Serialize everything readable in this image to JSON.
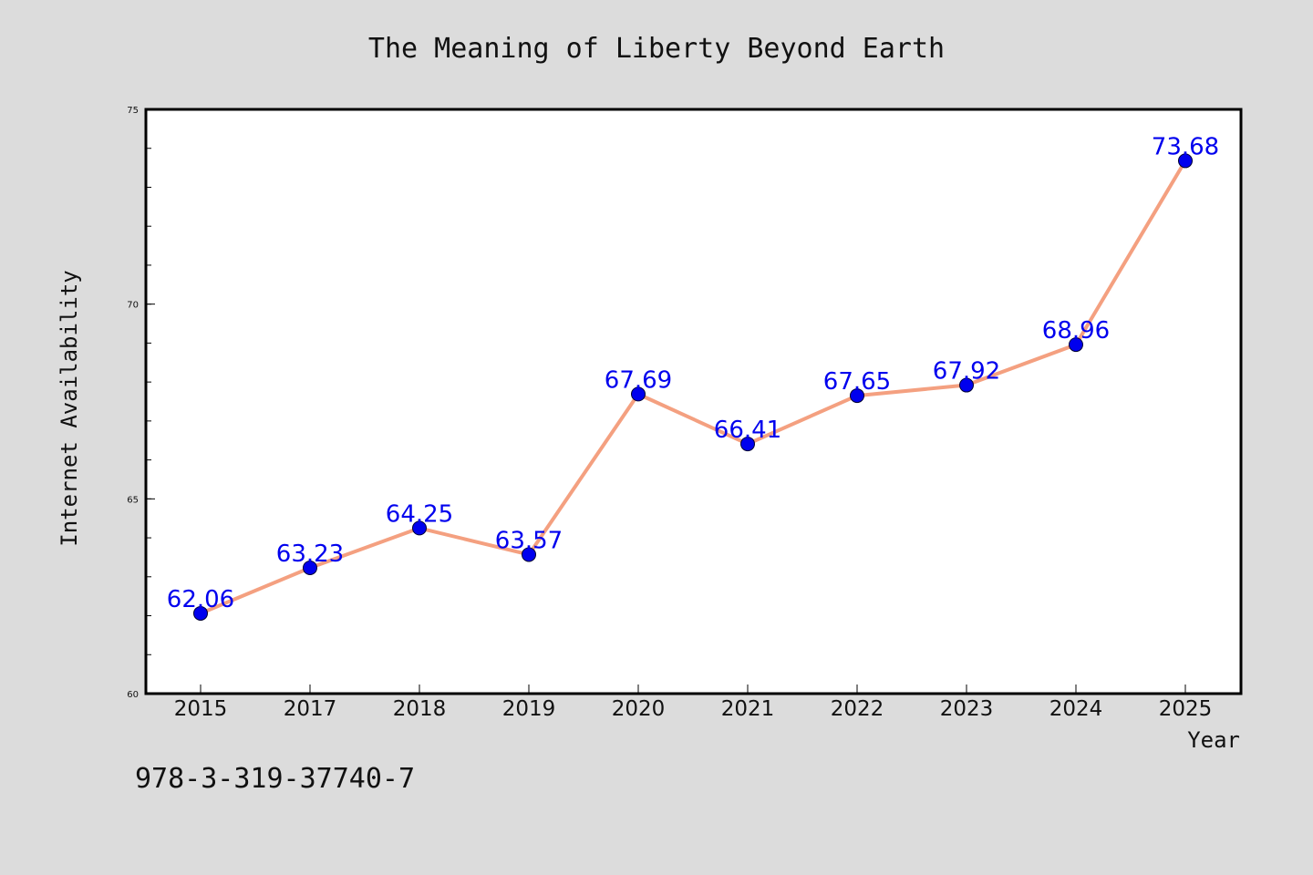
{
  "chart_data": {
    "type": "line",
    "title": "The Meaning of Liberty Beyond Earth",
    "xlabel": "Year",
    "ylabel": "Internet Availability",
    "categories": [
      "2015",
      "2017",
      "2018",
      "2019",
      "2020",
      "2021",
      "2022",
      "2023",
      "2024",
      "2025"
    ],
    "series": [
      {
        "values": [
          62.06,
          63.23,
          64.25,
          63.57,
          67.69,
          66.41,
          67.65,
          67.92,
          68.96,
          73.68
        ],
        "data_labels": [
          "62.06",
          "63.23",
          "64.25",
          "63.57",
          "67.69",
          "66.41",
          "67.65",
          "67.92",
          "68.96",
          "73.68"
        ]
      }
    ],
    "ylim": [
      60,
      75
    ],
    "yticks": [
      60,
      65,
      70,
      75
    ],
    "ytick_labels": [
      "60",
      "65",
      "70",
      "75"
    ],
    "y_minor_step": 1,
    "grid": false,
    "legend": "none",
    "colors": {
      "line": "#f4a080",
      "marker": "#0000ee",
      "marker_edge": "#000033",
      "data_label": "#0000ee",
      "background": "#dcdcdc",
      "plot_background": "#ffffff"
    }
  },
  "footnote": "978-3-319-37740-7"
}
